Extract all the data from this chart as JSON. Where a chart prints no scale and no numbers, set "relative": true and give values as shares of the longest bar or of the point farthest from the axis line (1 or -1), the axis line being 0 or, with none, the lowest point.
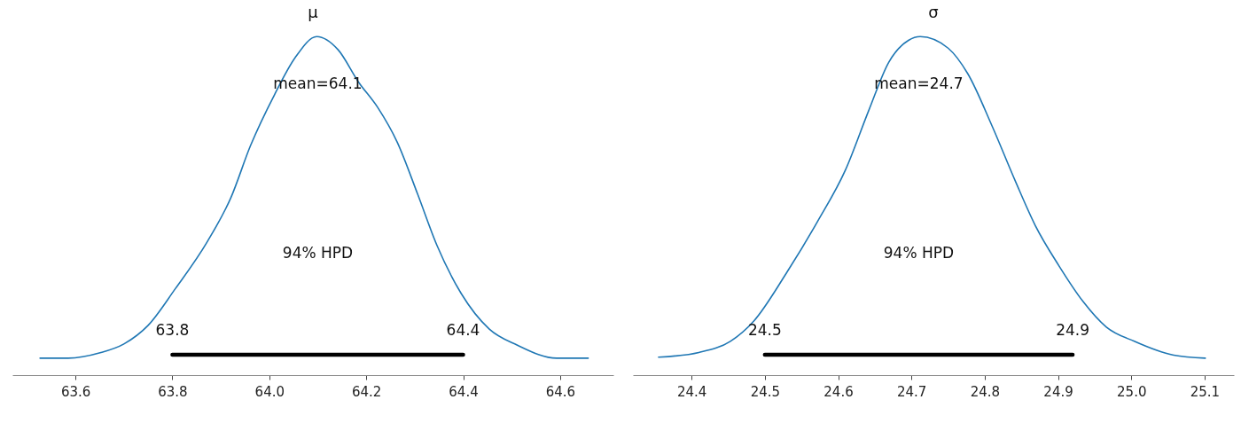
{
  "chart_data": [
    {
      "type": "line",
      "title": "μ",
      "relative": true,
      "tick_labels": "x",
      "grid": false,
      "xlim": [
        63.47,
        64.71
      ],
      "xticks": [
        63.6,
        63.8,
        {
          "value": 64,
          "label": "64.0"
        },
        64.2,
        64.4,
        64.6
      ],
      "series": [
        {
          "color": "#1f77b4",
          "x": [
            63.527,
            63.585,
            63.651,
            63.7,
            63.75,
            63.806,
            63.872,
            63.921,
            63.961,
            64.011,
            64.053,
            64.098,
            64.142,
            64.184,
            64.224,
            64.264,
            64.306,
            64.346,
            64.396,
            64.454,
            64.511,
            64.593,
            64.658
          ],
          "values": [
            0.05,
            0.05,
            0.066,
            0.092,
            0.147,
            0.255,
            0.394,
            0.525,
            0.677,
            0.829,
            0.937,
            1.0,
            0.961,
            0.866,
            0.79,
            0.688,
            0.535,
            0.383,
            0.241,
            0.136,
            0.089,
            0.05,
            0.05
          ]
        },
        {
          "color": "#000000",
          "x": [
            63.8,
            64.4
          ],
          "values": [
            0.06,
            0.06
          ]
        }
      ],
      "annotations": [
        "mean=64.1",
        "94% HPD",
        "63.8",
        "64.4"
      ]
    },
    {
      "type": "line",
      "title": "σ",
      "relative": true,
      "tick_labels": "x",
      "grid": false,
      "xlim": [
        24.32,
        25.14
      ],
      "xticks": [
        24.4,
        24.5,
        24.6,
        24.7,
        24.8,
        24.9,
        {
          "value": 25,
          "label": "25.0"
        },
        25.1
      ],
      "series": [
        {
          "color": "#1f77b4",
          "x": [
            24.355,
            24.41,
            24.453,
            24.485,
            24.529,
            24.572,
            24.61,
            24.642,
            24.669,
            24.696,
            24.712,
            24.75,
            24.777,
            24.81,
            24.842,
            24.869,
            24.901,
            24.934,
            24.966,
            25.004,
            25.058,
            25.101
          ],
          "values": [
            0.053,
            0.067,
            0.1,
            0.16,
            0.3,
            0.454,
            0.606,
            0.783,
            0.924,
            0.989,
            1.0,
            0.966,
            0.89,
            0.736,
            0.572,
            0.442,
            0.324,
            0.218,
            0.142,
            0.1,
            0.059,
            0.05
          ]
        },
        {
          "color": "#000000",
          "x": [
            24.5,
            24.92
          ],
          "values": [
            0.06,
            0.06
          ]
        }
      ],
      "annotations": [
        "mean=24.7",
        "94% HPD",
        "24.5",
        "24.9"
      ]
    }
  ]
}
